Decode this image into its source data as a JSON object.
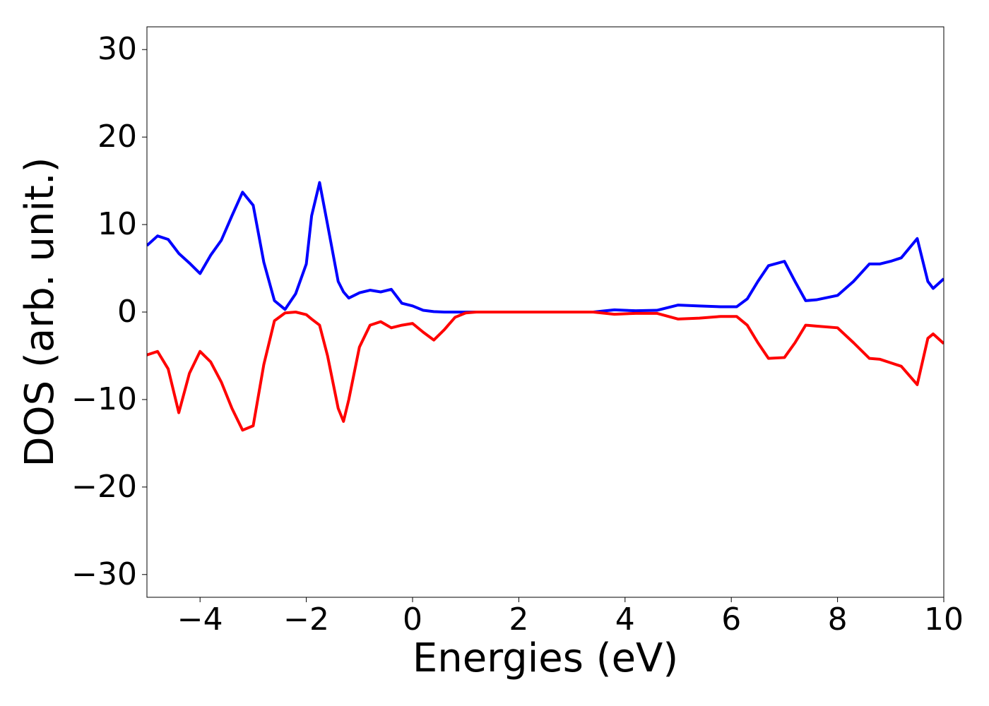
{
  "chart_data": {
    "type": "line",
    "xlabel": "Energies (eV)",
    "ylabel": "DOS (arb. unit.)",
    "x": [
      -5,
      -4.8,
      -4.6,
      -4.4,
      -4.2,
      -4,
      -3.8,
      -3.6,
      -3.4,
      -3.2,
      -3,
      -2.8,
      -2.6,
      -2.4,
      -2.2,
      -2,
      -1.9,
      -1.75,
      -1.6,
      -1.4,
      -1.3,
      -1.2,
      -1,
      -0.8,
      -0.6,
      -0.4,
      -0.2,
      0,
      0.2,
      0.4,
      0.6,
      0.8,
      1,
      1.2,
      3.4,
      3.8,
      4.2,
      4.6,
      5,
      5.4,
      5.8,
      6.1,
      6.3,
      6.5,
      6.7,
      7,
      7.2,
      7.4,
      7.6,
      8,
      8.3,
      8.6,
      8.8,
      9,
      9.2,
      9.5,
      9.7,
      9.8,
      10
    ],
    "series": [
      {
        "color": "#0000ff",
        "values": [
          7.6,
          8.7,
          8.3,
          6.7,
          5.6,
          4.4,
          6.5,
          8.2,
          11,
          13.7,
          12.2,
          5.7,
          1.3,
          0.3,
          2.1,
          5.5,
          11,
          14.8,
          10,
          3.5,
          2.3,
          1.6,
          2.2,
          2.5,
          2.3,
          2.6,
          1.0,
          0.7,
          0.2,
          0.05,
          0,
          0,
          0,
          0,
          0,
          0.25,
          0.15,
          0.2,
          0.8,
          0.7,
          0.6,
          0.6,
          1.5,
          3.5,
          5.3,
          5.8,
          3.5,
          1.3,
          1.4,
          1.9,
          3.5,
          5.5,
          5.5,
          5.8,
          6.2,
          8.4,
          3.5,
          2.7,
          3.8
        ]
      },
      {
        "color": "#ff0000",
        "values": [
          -4.9,
          -4.5,
          -6.5,
          -11.5,
          -7,
          -4.5,
          -5.7,
          -8,
          -11,
          -13.5,
          -13,
          -6,
          -1,
          -0.1,
          0,
          -0.3,
          -0.8,
          -1.5,
          -5,
          -11,
          -12.5,
          -10,
          -4,
          -1.5,
          -1.1,
          -1.8,
          -1.5,
          -1.3,
          -2.3,
          -3.2,
          -2,
          -0.6,
          -0.1,
          0,
          0,
          -0.25,
          -0.15,
          -0.15,
          -0.8,
          -0.7,
          -0.5,
          -0.5,
          -1.5,
          -3.5,
          -5.3,
          -5.2,
          -3.5,
          -1.5,
          -1.6,
          -1.8,
          -3.5,
          -5.3,
          -5.4,
          -5.8,
          -6.2,
          -8.3,
          -3,
          -2.5,
          -3.6
        ]
      }
    ],
    "xlim": [
      -5,
      10
    ],
    "xticks": [
      {
        "value": -4,
        "label": "−4"
      },
      {
        "value": -2,
        "label": "−2"
      },
      0,
      2,
      4,
      6,
      8,
      10
    ],
    "ylim": [
      -32.6,
      32.6
    ],
    "yticks": [
      {
        "value": -30,
        "label": "−30"
      },
      {
        "value": -20,
        "label": "−20"
      },
      {
        "value": -10,
        "label": "−10"
      },
      0,
      10,
      20,
      30
    ],
    "grid": false
  }
}
